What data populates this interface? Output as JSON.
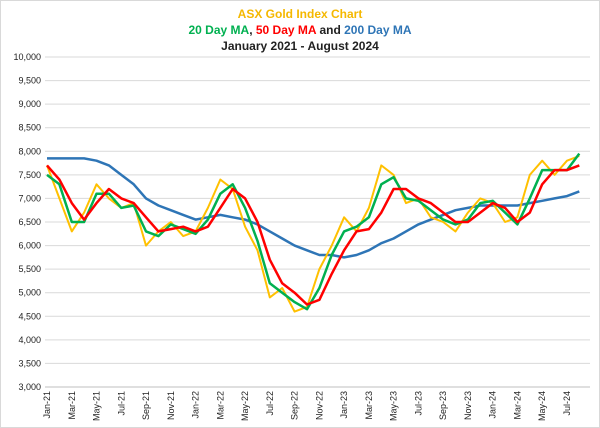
{
  "chart_data": {
    "type": "line",
    "title": "ASX Gold Index Chart",
    "title_color": "#f5b800",
    "subtitle": "January 2021 - August 2024",
    "legend_separators": [
      ", ",
      " and "
    ],
    "categories": [
      "Jan-21",
      null,
      "Mar-21",
      null,
      "May-21",
      null,
      "Jul-21",
      null,
      "Sep-21",
      null,
      "Nov-21",
      null,
      "Jan-22",
      null,
      "Mar-22",
      null,
      "May-22",
      null,
      "Jul-22",
      null,
      "Sep-22",
      null,
      "Nov-22",
      null,
      "Jan-23",
      null,
      "Mar-23",
      null,
      "May-23",
      null,
      "Jul-23",
      null,
      "Sep-23",
      null,
      "Nov-23",
      null,
      "Jan-24",
      null,
      "Mar-24",
      null,
      "May-24",
      null,
      "Jul-24",
      null
    ],
    "series": [
      {
        "color": "#ffc000",
        "values": [
          7700,
          7000,
          6300,
          6700,
          7300,
          7000,
          6800,
          6900,
          6000,
          6300,
          6500,
          6200,
          6300,
          6800,
          7400,
          7200,
          6400,
          5900,
          4900,
          5100,
          4600,
          4700,
          5500,
          6000,
          6600,
          6300,
          6800,
          7700,
          7500,
          6900,
          7000,
          6600,
          6500,
          6300,
          6700,
          7000,
          6900,
          6500,
          6600,
          7500,
          7800,
          7500,
          7800,
          7900
        ]
      },
      {
        "name": "20 Day MA",
        "color": "#00b050",
        "values": [
          7500,
          7300,
          6500,
          6500,
          7100,
          7100,
          6800,
          6850,
          6300,
          6200,
          6450,
          6350,
          6250,
          6550,
          7100,
          7300,
          6800,
          6100,
          5200,
          5000,
          4800,
          4650,
          5100,
          5800,
          6300,
          6400,
          6600,
          7300,
          7450,
          7000,
          6950,
          6750,
          6550,
          6450,
          6550,
          6900,
          6950,
          6700,
          6450,
          7000,
          7600,
          7600,
          7600,
          7950
        ]
      },
      {
        "name": "50 Day MA",
        "color": "#ff0000",
        "values": [
          7700,
          7400,
          6900,
          6550,
          6900,
          7200,
          7000,
          6900,
          6600,
          6300,
          6350,
          6400,
          6300,
          6400,
          6800,
          7200,
          7000,
          6500,
          5700,
          5200,
          5000,
          4750,
          4850,
          5400,
          5900,
          6300,
          6350,
          6700,
          7200,
          7200,
          7000,
          6900,
          6700,
          6500,
          6500,
          6700,
          6900,
          6800,
          6500,
          6700,
          7300,
          7600,
          7600,
          7700
        ]
      },
      {
        "name": "200 Day MA",
        "color": "#2e75b6",
        "values": [
          7850,
          7850,
          7850,
          7850,
          7800,
          7700,
          7500,
          7300,
          7000,
          6850,
          6750,
          6650,
          6550,
          6600,
          6650,
          6600,
          6550,
          6450,
          6300,
          6150,
          6000,
          5900,
          5800,
          5800,
          5750,
          5800,
          5900,
          6050,
          6150,
          6300,
          6450,
          6550,
          6650,
          6750,
          6800,
          6850,
          6850,
          6850,
          6850,
          6900,
          6950,
          7000,
          7050,
          7150
        ]
      }
    ],
    "ylim": [
      3000,
      10000
    ],
    "yticks": [
      {
        "value": 3000,
        "label": "3,000"
      },
      {
        "value": 3500,
        "label": "3,500"
      },
      {
        "value": 4000,
        "label": "4,000"
      },
      {
        "value": 4500,
        "label": "4,500"
      },
      {
        "value": 5000,
        "label": "5,000"
      },
      {
        "value": 5500,
        "label": "5,500"
      },
      {
        "value": 6000,
        "label": "6,000"
      },
      {
        "value": 6500,
        "label": "6,500"
      },
      {
        "value": 7000,
        "label": "7,000"
      },
      {
        "value": 7500,
        "label": "7,500"
      },
      {
        "value": 8000,
        "label": "8,000"
      },
      {
        "value": 8500,
        "label": "8,500"
      },
      {
        "value": 9000,
        "label": "9,000"
      },
      {
        "value": 9500,
        "label": "9,500"
      },
      {
        "value": 10000,
        "label": "10,000"
      }
    ],
    "grid": true
  }
}
